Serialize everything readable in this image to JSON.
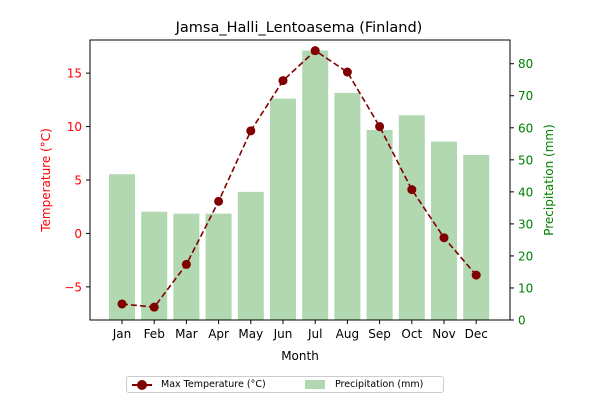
{
  "colors": {
    "temp_line": "#800000",
    "temp_axis": "#ff0000",
    "precip_bar": "#b1d8b1",
    "precip_axis": "#008000"
  },
  "chart_data": {
    "type": "bar",
    "title": "Jamsa_Halli_Lentoasema (Finland)",
    "xlabel": "Month",
    "ylabel_left": "Temperature (°C)",
    "ylabel_right": "Precipitation (mm)",
    "categories": [
      "Jan",
      "Feb",
      "Mar",
      "Apr",
      "May",
      "Jun",
      "Jul",
      "Aug",
      "Sep",
      "Oct",
      "Nov",
      "Dec"
    ],
    "series": [
      {
        "name": "Max Temperature (°C)",
        "type": "line",
        "axis": "left",
        "values": [
          -6.6,
          -6.9,
          -2.9,
          3.0,
          9.6,
          14.3,
          17.1,
          15.1,
          10.0,
          4.1,
          -0.4,
          -3.9
        ]
      },
      {
        "name": "Precipitation (mm)",
        "type": "bar",
        "axis": "right",
        "values": [
          45.5,
          33.8,
          33.2,
          33.2,
          40.0,
          69.1,
          84.1,
          70.9,
          59.3,
          63.9,
          55.7,
          51.5
        ]
      }
    ],
    "ylim_left": [
      -8.1,
      18.1
    ],
    "ylim_right": [
      0,
      87.4
    ],
    "yticks_left": [
      -5,
      0,
      5,
      10,
      15
    ],
    "yticks_right": [
      0,
      10,
      20,
      30,
      40,
      50,
      60,
      70,
      80
    ],
    "grid": false,
    "legend_position": "bottom-center"
  }
}
